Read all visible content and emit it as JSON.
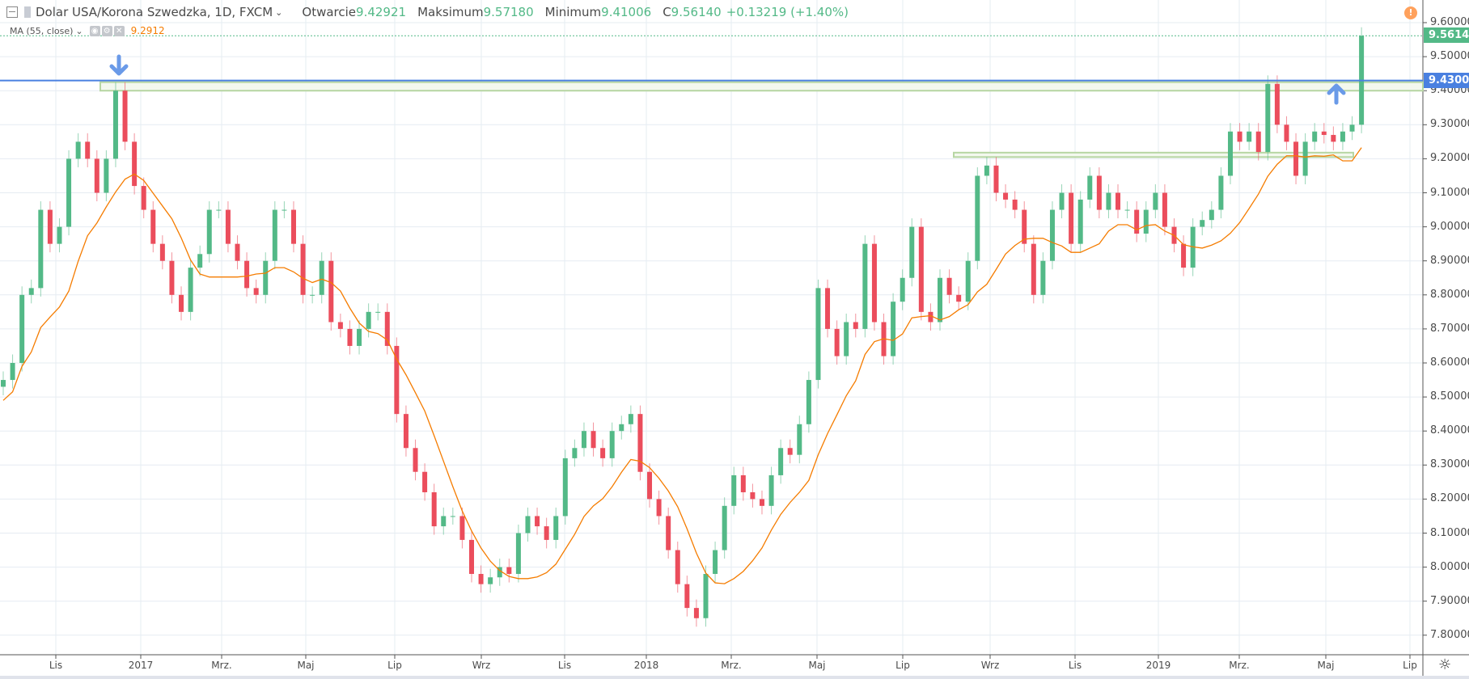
{
  "header": {
    "symbol": "Dolar USA/Korona Szwedzka, 1D, FXCM",
    "open_label": "Otwarcie",
    "open": "9.42921",
    "high_label": "Maksimum",
    "high": "9.57180",
    "low_label": "Minimum",
    "low": "9.41006",
    "close_label": "C",
    "close": "9.56140",
    "change": "+0.13219 (+1.40%)"
  },
  "indicator": {
    "label": "MA (55, close)",
    "value": "9.2912",
    "icons": [
      "eye-icon",
      "gear-icon",
      "close-icon"
    ]
  },
  "warning_icon": "!",
  "colors": {
    "up": "#53b987",
    "down": "#eb4d5c",
    "ma": "#f57c00",
    "level": "#4a80e0",
    "zone": "#b7d6a3",
    "price_tag": "#53b987"
  },
  "chart_data": {
    "type": "candlestick",
    "title": "Dolar USA/Korona Szwedzka, 1D, FXCM",
    "ylim": [
      7.72,
      9.66
    ],
    "y_ticks": [
      "9.60000",
      "9.50000",
      "9.40000",
      "9.30000",
      "9.20000",
      "9.10000",
      "9.00000",
      "8.90000",
      "8.80000",
      "8.70000",
      "8.60000",
      "8.50000",
      "8.40000",
      "8.30000",
      "8.20000",
      "8.10000",
      "8.00000",
      "7.90000",
      "7.80000"
    ],
    "x_ticks": [
      "Lis",
      "2017",
      "Mrz.",
      "Maj",
      "Lip",
      "Wrz",
      "Lis",
      "2018",
      "Mrz.",
      "Maj",
      "Lip",
      "Wrz",
      "Lis",
      "2019",
      "Mrz.",
      "Maj",
      "Lip"
    ],
    "closes": [
      8.55,
      8.6,
      8.8,
      8.82,
      9.05,
      8.95,
      9.0,
      9.2,
      9.25,
      9.2,
      9.1,
      9.2,
      9.4,
      9.25,
      9.12,
      9.05,
      8.95,
      8.9,
      8.8,
      8.75,
      8.88,
      8.92,
      9.05,
      9.05,
      8.95,
      8.9,
      8.82,
      8.8,
      8.9,
      9.05,
      9.05,
      8.95,
      8.8,
      8.8,
      8.9,
      8.72,
      8.7,
      8.65,
      8.7,
      8.75,
      8.75,
      8.65,
      8.45,
      8.35,
      8.28,
      8.22,
      8.12,
      8.15,
      8.15,
      8.08,
      7.98,
      7.95,
      7.97,
      8.0,
      7.98,
      8.1,
      8.15,
      8.12,
      8.08,
      8.15,
      8.32,
      8.35,
      8.4,
      8.35,
      8.32,
      8.4,
      8.42,
      8.45,
      8.28,
      8.2,
      8.15,
      8.05,
      7.95,
      7.88,
      7.85,
      7.98,
      8.05,
      8.18,
      8.27,
      8.22,
      8.2,
      8.18,
      8.27,
      8.35,
      8.33,
      8.42,
      8.55,
      8.82,
      8.7,
      8.62,
      8.72,
      8.7,
      8.95,
      8.72,
      8.62,
      8.78,
      8.85,
      9.0,
      8.75,
      8.72,
      8.85,
      8.8,
      8.78,
      8.9,
      9.15,
      9.18,
      9.1,
      9.08,
      9.05,
      8.95,
      8.8,
      8.9,
      9.05,
      9.1,
      8.95,
      9.08,
      9.15,
      9.05,
      9.1,
      9.05,
      9.05,
      8.98,
      9.05,
      9.1,
      9.0,
      8.95,
      8.88,
      9.0,
      9.02,
      9.05,
      9.15,
      9.28,
      9.25,
      9.28,
      9.22,
      9.42,
      9.3,
      9.25,
      9.15,
      9.25,
      9.28,
      9.27,
      9.25,
      9.28,
      9.3,
      9.5614
    ],
    "levels": [
      {
        "type": "horizontal-line",
        "price": 9.43,
        "label": "9.43000"
      },
      {
        "type": "zone",
        "from": 9.4,
        "to": 9.425
      },
      {
        "type": "zone",
        "from": 9.205,
        "to": 9.218
      }
    ],
    "last_price": {
      "value": 9.5614,
      "label": "9.56140"
    },
    "ma_period": 55
  }
}
